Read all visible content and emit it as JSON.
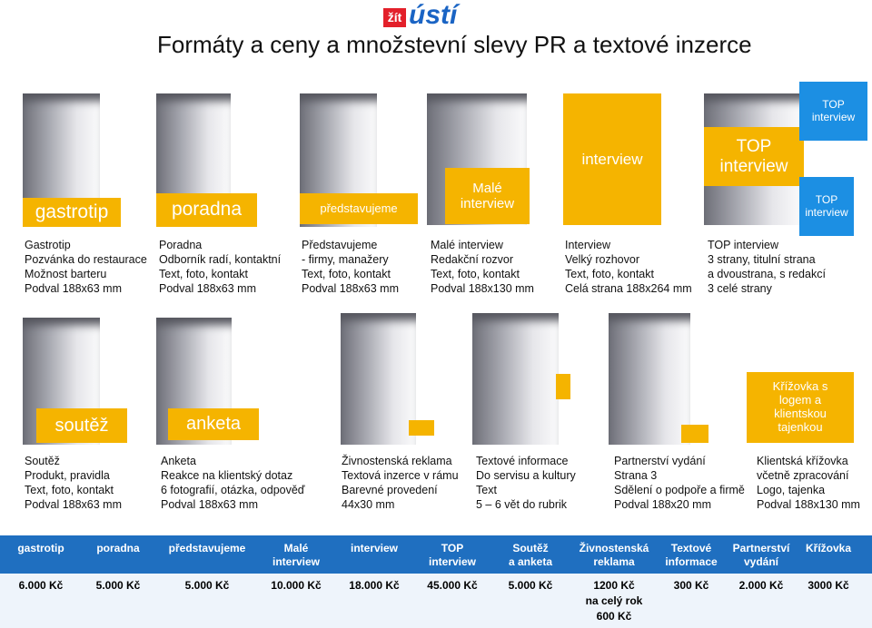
{
  "logo": {
    "prefix": "žít",
    "name": "ústí"
  },
  "title": "Formáty a ceny a množstevní slevy PR a textové inzerce",
  "products": [
    {
      "labels": [
        [
          "gastrotip"
        ]
      ],
      "lines": [
        "Gastrotip",
        "Pozvánka do restaurace",
        "Možnost barteru",
        "Podval 188x63 mm"
      ]
    },
    {
      "labels": [
        [
          "poradna"
        ]
      ],
      "lines": [
        "Poradna",
        "Odborník radí, kontaktní",
        "Text, foto, kontakt",
        "Podval 188x63 mm"
      ]
    },
    {
      "labels": [
        [
          "představujeme"
        ]
      ],
      "lines": [
        "Představujeme",
        "- firmy, manažery",
        "Text, foto, kontakt",
        "Podval 188x63 mm"
      ]
    },
    {
      "labels": [
        [
          "Malé",
          "interview"
        ]
      ],
      "lines": [
        "Malé interview",
        "Redakční rozvor",
        "Text, foto, kontakt",
        "Podval 188x130 mm"
      ]
    },
    {
      "labels": [
        [
          "interview"
        ]
      ],
      "lines": [
        "Interview",
        "Velký rozhovor",
        "Text, foto, kontakt",
        "Celá strana 188x264 mm"
      ]
    },
    {
      "labels": [
        [
          "TOP",
          "interview"
        ]
      ],
      "lines": [
        "TOP interview",
        "3 strany, titulní strana",
        "a dvoustrana, s redakcí",
        "3 celé strany"
      ]
    },
    {
      "labels": [
        [
          "TOP",
          "interview"
        ],
        [
          "TOP",
          "interview"
        ]
      ],
      "lines": []
    },
    {
      "labels": [
        [
          "soutěž"
        ]
      ],
      "lines": [
        "Soutěž",
        "Produkt, pravidla",
        "Text, foto, kontakt",
        "Podval 188x63 mm"
      ]
    },
    {
      "labels": [
        [
          "anketa"
        ]
      ],
      "lines": [
        "Anketa",
        "Reakce na klientský dotaz",
        "6 fotografií, otázka, odpověď",
        "Podval 188x63 mm"
      ]
    },
    {
      "labels": [],
      "lines": [
        "Živnostenská reklama",
        "Textová inzerce v rámu",
        "Barevné provedení",
        "44x30 mm"
      ]
    },
    {
      "labels": [],
      "lines": [
        "Textové informace",
        "Do servisu a kultury",
        "Text",
        "5 – 6 vět  do rubrik"
      ]
    },
    {
      "labels": [],
      "lines": [
        "Partnerství vydání",
        "Strana 3",
        "Sdělení o podpoře a firmě",
        "Podval 188x20  mm"
      ]
    },
    {
      "labels": [
        [
          "Křížovka s",
          "logem a",
          "klientskou",
          "tajenkou"
        ]
      ],
      "lines": [
        "Klientská křížovka",
        "včetně zpracování",
        "Logo, tajenka",
        "Podval 188x130 mm"
      ]
    }
  ],
  "table": {
    "headers": [
      [
        "gastrotip"
      ],
      [
        "poradna"
      ],
      [
        "představujeme"
      ],
      [
        "Malé",
        "interview"
      ],
      [
        "interview"
      ],
      [
        "TOP",
        "interview"
      ],
      [
        "Soutěž",
        "a anketa"
      ],
      [
        "Živnostenská",
        "reklama"
      ],
      [
        "Textové",
        "informace"
      ],
      [
        "Partnerství",
        "vydání"
      ],
      [
        "Křížovka"
      ]
    ],
    "prices": [
      [
        "6.000 Kč"
      ],
      [
        "5.000 Kč"
      ],
      [
        "5.000 Kč"
      ],
      [
        "10.000 Kč"
      ],
      [
        "18.000 Kč"
      ],
      [
        "45.000 Kč"
      ],
      [
        "5.000 Kč"
      ],
      [
        "1200 Kč",
        "na celý rok",
        "600 Kč"
      ],
      [
        "300 Kč"
      ],
      [
        "2.000 Kč"
      ],
      [
        "3000 Kč"
      ]
    ]
  }
}
